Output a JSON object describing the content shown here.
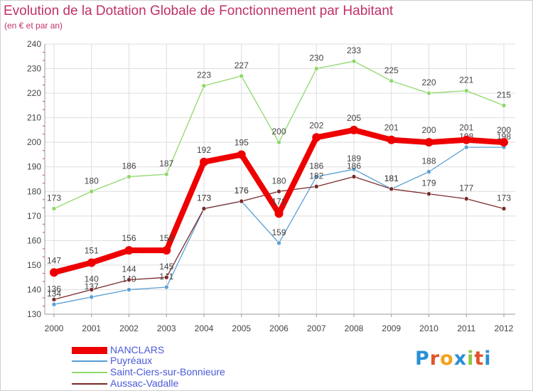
{
  "title": "Evolution de la Dotation Globale de Fonctionnement par Habitant",
  "subtitle": "(en € et par an)",
  "logo": {
    "text": "Proxiti",
    "letter_colors": [
      "#2a8fd6",
      "#e0542a",
      "#f2a21c",
      "#2a8fd6",
      "#8cc63f",
      "#e0542a",
      "#2a8fd6"
    ]
  },
  "chart_data": {
    "type": "line",
    "x": [
      "2000",
      "2001",
      "2002",
      "2003",
      "2004",
      "2005",
      "2006",
      "2007",
      "2008",
      "2009",
      "2010",
      "2011",
      "2012"
    ],
    "ylim": [
      130,
      240
    ],
    "yticks": [
      "130",
      "140",
      "150",
      "160",
      "170",
      "180",
      "190",
      "200",
      "210",
      "220",
      "230",
      "240"
    ],
    "grid": true,
    "legend_position": "bottom-left",
    "series": [
      {
        "name": "NANCLARS",
        "color": "#ee0000",
        "values": [
          147,
          151,
          156,
          156,
          192,
          195,
          171,
          202,
          205,
          201,
          200,
          201,
          200
        ]
      },
      {
        "name": "Puyréaux",
        "color": "#5a9fd4",
        "values": [
          134,
          137,
          140,
          141,
          173,
          176,
          159,
          186,
          189,
          181,
          188,
          198,
          198
        ]
      },
      {
        "name": "Saint-Ciers-sur-Bonnieure",
        "color": "#8fd86a",
        "values": [
          173,
          180,
          186,
          187,
          223,
          227,
          200,
          230,
          233,
          225,
          220,
          221,
          215
        ]
      },
      {
        "name": "Aussac-Vadalle",
        "color": "#7a2a2a",
        "values": [
          136,
          140,
          144,
          145,
          173,
          176,
          180,
          182,
          186,
          181,
          179,
          177,
          173
        ]
      }
    ]
  }
}
